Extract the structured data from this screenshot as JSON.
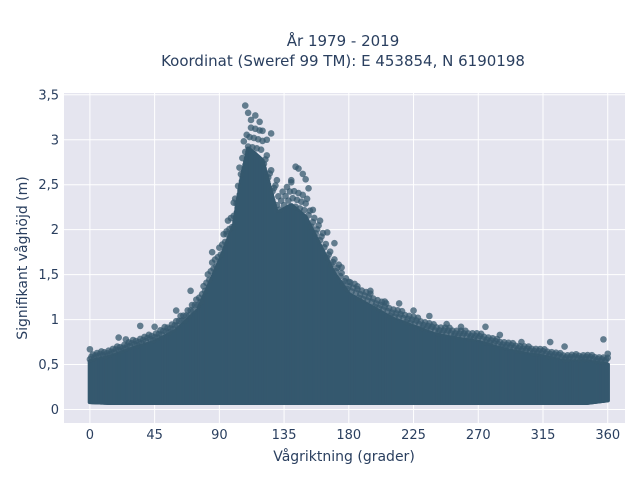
{
  "chart_data": {
    "type": "scatter",
    "title": "År 1979 - 2019",
    "subtitle": "Koordinat (Sweref 99 TM): E 453854, N 6190198",
    "xlabel": "Vågriktning (grader)",
    "ylabel": "Signifikant våghöjd (m)",
    "xlim": [
      -18,
      372
    ],
    "ylim": [
      -0.15,
      3.52
    ],
    "x_ticks": [
      {
        "value": 0,
        "label": "0"
      },
      {
        "value": 45,
        "label": "45"
      },
      {
        "value": 90,
        "label": "90"
      },
      {
        "value": 135,
        "label": "135"
      },
      {
        "value": 180,
        "label": "180"
      },
      {
        "value": 225,
        "label": "225"
      },
      {
        "value": 270,
        "label": "270"
      },
      {
        "value": 315,
        "label": "315"
      },
      {
        "value": 360,
        "label": "360"
      }
    ],
    "y_ticks": [
      {
        "value": 0,
        "label": "0"
      },
      {
        "value": 0.5,
        "label": "0,5"
      },
      {
        "value": 1,
        "label": "1"
      },
      {
        "value": 1.5,
        "label": "1,5"
      },
      {
        "value": 2,
        "label": "2"
      },
      {
        "value": 2.5,
        "label": "2,5"
      },
      {
        "value": 3,
        "label": "3"
      },
      {
        "value": 3.5,
        "label": "3,5"
      }
    ],
    "grid": true,
    "plot_background": "#e5e5ef",
    "marker_color": "#35586e",
    "envelope": {
      "x": [
        0,
        15,
        30,
        45,
        60,
        75,
        90,
        100,
        105,
        110,
        115,
        120,
        130,
        140,
        150,
        160,
        170,
        180,
        195,
        210,
        225,
        240,
        255,
        270,
        285,
        300,
        315,
        330,
        345,
        360
      ],
      "y_max": [
        0.62,
        0.68,
        0.78,
        0.86,
        1.0,
        1.25,
        1.85,
        2.3,
        2.85,
        3.25,
        3.18,
        3.1,
        2.45,
        2.55,
        2.4,
        2.05,
        1.7,
        1.45,
        1.3,
        1.15,
        1.05,
        0.95,
        0.9,
        0.86,
        0.78,
        0.72,
        0.68,
        0.62,
        0.62,
        0.58
      ],
      "y_min": [
        0.06,
        0.05,
        0.05,
        0.05,
        0.05,
        0.05,
        0.05,
        0.05,
        0.05,
        0.05,
        0.05,
        0.05,
        0.05,
        0.05,
        0.05,
        0.05,
        0.05,
        0.05,
        0.05,
        0.05,
        0.05,
        0.05,
        0.05,
        0.05,
        0.05,
        0.05,
        0.05,
        0.05,
        0.05,
        0.08
      ]
    },
    "outliers": [
      {
        "x": 0,
        "y": 0.67
      },
      {
        "x": 20,
        "y": 0.8
      },
      {
        "x": 25,
        "y": 0.78
      },
      {
        "x": 35,
        "y": 0.93
      },
      {
        "x": 45,
        "y": 0.92
      },
      {
        "x": 60,
        "y": 1.1
      },
      {
        "x": 70,
        "y": 1.32
      },
      {
        "x": 85,
        "y": 1.75
      },
      {
        "x": 95,
        "y": 1.95
      },
      {
        "x": 100,
        "y": 2.3
      },
      {
        "x": 108,
        "y": 3.38
      },
      {
        "x": 110,
        "y": 3.3
      },
      {
        "x": 112,
        "y": 3.22
      },
      {
        "x": 115,
        "y": 3.27
      },
      {
        "x": 118,
        "y": 3.2
      },
      {
        "x": 120,
        "y": 3.1
      },
      {
        "x": 123,
        "y": 3.0
      },
      {
        "x": 126,
        "y": 3.07
      },
      {
        "x": 130,
        "y": 2.55
      },
      {
        "x": 140,
        "y": 2.55
      },
      {
        "x": 143,
        "y": 2.7
      },
      {
        "x": 145,
        "y": 2.68
      },
      {
        "x": 148,
        "y": 2.62
      },
      {
        "x": 150,
        "y": 2.56
      },
      {
        "x": 152,
        "y": 2.46
      },
      {
        "x": 155,
        "y": 2.22
      },
      {
        "x": 160,
        "y": 2.1
      },
      {
        "x": 165,
        "y": 1.97
      },
      {
        "x": 170,
        "y": 1.85
      },
      {
        "x": 175,
        "y": 1.58
      },
      {
        "x": 180,
        "y": 1.42
      },
      {
        "x": 186,
        "y": 1.37
      },
      {
        "x": 195,
        "y": 1.32
      },
      {
        "x": 205,
        "y": 1.2
      },
      {
        "x": 215,
        "y": 1.18
      },
      {
        "x": 225,
        "y": 1.1
      },
      {
        "x": 236,
        "y": 1.04
      },
      {
        "x": 248,
        "y": 0.95
      },
      {
        "x": 258,
        "y": 0.92
      },
      {
        "x": 275,
        "y": 0.92
      },
      {
        "x": 285,
        "y": 0.83
      },
      {
        "x": 300,
        "y": 0.75
      },
      {
        "x": 320,
        "y": 0.75
      },
      {
        "x": 330,
        "y": 0.7
      },
      {
        "x": 357,
        "y": 0.78
      },
      {
        "x": 360,
        "y": 0.62
      }
    ]
  }
}
